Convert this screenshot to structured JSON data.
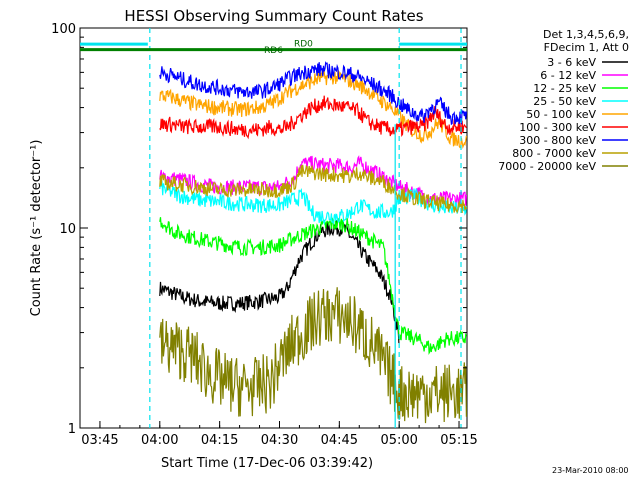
{
  "chart_data": {
    "type": "line",
    "title": "HESSI Observing Summary Count Rates",
    "xlabel": "Start Time (17-Dec-06 03:39:42)",
    "ylabel": "Count Rate (s⁻¹ detector⁻¹)",
    "x_unit": "minutes after 03:39:42",
    "xlim": [
      0,
      97
    ],
    "ylim": [
      1,
      100
    ],
    "yscale": "log",
    "grid": false,
    "legend_position": "right",
    "x_ticks": [
      {
        "value": 5,
        "label": "03:45"
      },
      {
        "value": 20,
        "label": "04:00"
      },
      {
        "value": 35,
        "label": "04:15"
      },
      {
        "value": 50,
        "label": "04:30"
      },
      {
        "value": 65,
        "label": "04:45"
      },
      {
        "value": 80,
        "label": "05:00"
      },
      {
        "value": 95,
        "label": "05:15"
      }
    ],
    "y_ticks": [
      {
        "value": 1,
        "label": "1"
      },
      {
        "value": 10,
        "label": "10"
      },
      {
        "value": 100,
        "label": "100"
      }
    ],
    "legend_header": [
      "Det 1,3,4,5,6,9,",
      "FDecim 1, Att 0"
    ],
    "timestamp": "23-Mar-2010 08:00",
    "annotations": [
      {
        "text": "RD6",
        "x": 48.5,
        "y": 75
      },
      {
        "text": "RD0",
        "x": 56,
        "y": 81
      }
    ],
    "markers": {
      "dashed_lines_x": [
        17.5,
        80,
        95.5
      ],
      "solid_lines_x": [
        79
      ],
      "top_bar_left": {
        "x": [
          0,
          17
        ],
        "y": 83
      },
      "top_bar_right": {
        "x": [
          80,
          97
        ],
        "y": 83
      },
      "level_line": {
        "x": [
          0,
          97
        ],
        "y": 78
      }
    },
    "series": [
      {
        "name": "3 - 6 keV",
        "color": "#000000",
        "x": [
          20,
          26,
          30,
          35,
          40,
          45,
          50,
          52,
          55,
          58,
          60,
          63,
          66,
          68,
          72,
          75,
          78,
          80
        ],
        "y": [
          5,
          4.5,
          4.3,
          4.2,
          4.2,
          4.3,
          4.5,
          5,
          7,
          8.5,
          9.5,
          10,
          10,
          9,
          7,
          6,
          4.5,
          2.8
        ]
      },
      {
        "name": "6 - 12 keV",
        "color": "#ff00ff",
        "x": [
          20,
          25,
          30,
          35,
          40,
          45,
          50,
          52,
          54,
          55,
          58,
          62,
          65,
          68,
          70,
          72,
          76,
          80,
          84,
          88,
          92,
          97
        ],
        "y": [
          18,
          17.5,
          16.5,
          16,
          16,
          16,
          16,
          17,
          18,
          21,
          21,
          20.5,
          20.5,
          20,
          21,
          20,
          18,
          16,
          15,
          14,
          14,
          14
        ]
      },
      {
        "name": "12 - 25 keV",
        "color": "#00ff00",
        "x": [
          20,
          24,
          28,
          32,
          36,
          40,
          45,
          50,
          54,
          57,
          60,
          63,
          66,
          68,
          72,
          76,
          80,
          84,
          88,
          92,
          97
        ],
        "y": [
          11,
          9.5,
          9,
          8.6,
          8.3,
          8,
          8,
          8.2,
          9,
          9.5,
          10,
          10.5,
          10.5,
          10,
          9,
          8,
          3,
          2.8,
          2.5,
          2.8,
          2.8
        ]
      },
      {
        "name": "25 - 50 keV",
        "color": "#00ffff",
        "x": [
          20,
          25,
          30,
          35,
          40,
          45,
          50,
          52,
          54,
          56,
          58,
          60,
          63,
          66,
          68,
          70,
          74,
          78,
          80,
          84,
          88,
          92,
          97
        ],
        "y": [
          16,
          14.5,
          13.8,
          13.5,
          13.2,
          13,
          13,
          13.5,
          14,
          14.5,
          12,
          11.5,
          11.5,
          11.5,
          12,
          13,
          12,
          12,
          14,
          14.5,
          13,
          12.5,
          12.5
        ]
      },
      {
        "name": "50 - 100 keV",
        "color": "#ffa500",
        "x": [
          20,
          23,
          26,
          30,
          35,
          40,
          45,
          48,
          51,
          54,
          57,
          60,
          63,
          66,
          69,
          72,
          75,
          78,
          80,
          83,
          86,
          88,
          90,
          93,
          97
        ],
        "y": [
          46,
          45,
          43,
          41,
          40,
          39,
          40,
          42,
          46,
          50,
          53,
          56,
          57,
          56,
          53,
          49,
          44,
          40,
          36,
          31,
          29,
          31,
          34,
          28,
          27
        ]
      },
      {
        "name": "100 - 300 keV",
        "color": "#ff0000",
        "x": [
          20,
          23,
          26,
          30,
          35,
          40,
          45,
          48,
          50,
          52,
          55,
          58,
          61,
          64,
          67,
          70,
          72,
          75,
          78,
          80,
          83,
          86,
          89,
          92,
          97
        ],
        "y": [
          33,
          33,
          32,
          32,
          32,
          31,
          31,
          32,
          31,
          32,
          36,
          40,
          42,
          41,
          40,
          38,
          34,
          32,
          31,
          31,
          32,
          32,
          38,
          32,
          32
        ]
      },
      {
        "name": "300 - 800 keV",
        "color": "#0000ff",
        "x": [
          20,
          23,
          26,
          30,
          35,
          40,
          45,
          48,
          51,
          54,
          57,
          60,
          63,
          66,
          69,
          72,
          75,
          78,
          80,
          83,
          86,
          88,
          90,
          93,
          97
        ],
        "y": [
          60,
          58,
          55,
          52,
          50,
          48,
          48,
          50,
          54,
          58,
          61,
          62,
          61,
          60,
          58,
          54,
          50,
          46,
          42,
          38,
          36,
          40,
          42,
          36,
          36
        ]
      },
      {
        "name": "800 - 7000 keV",
        "color": "#b8a000",
        "x": [
          20,
          25,
          30,
          35,
          40,
          45,
          50,
          52,
          54,
          55,
          58,
          62,
          65,
          68,
          70,
          72,
          76,
          80,
          84,
          88,
          92,
          97
        ],
        "y": [
          17,
          16.5,
          16,
          15.5,
          15.5,
          15.5,
          15.5,
          16,
          17,
          19,
          19,
          18.5,
          18.5,
          18,
          19,
          18,
          17,
          15,
          14,
          13.5,
          13,
          13
        ]
      },
      {
        "name": "7000 - 20000 keV",
        "color": "#808000",
        "x": [
          20,
          24,
          28,
          32,
          36,
          40,
          44,
          48,
          50,
          52,
          54,
          56,
          58,
          60,
          63,
          66,
          68,
          70,
          72,
          74,
          76,
          78,
          80,
          84,
          88,
          92,
          97
        ],
        "y": [
          2.6,
          2.5,
          2.3,
          1.9,
          1.7,
          1.6,
          1.6,
          1.7,
          2.1,
          2.4,
          2.8,
          3,
          3.3,
          3.6,
          3.7,
          3.6,
          3.4,
          3.1,
          2.8,
          2.5,
          2.1,
          1.8,
          1.5,
          1.5,
          1.5,
          1.5,
          1.5
        ]
      }
    ]
  }
}
